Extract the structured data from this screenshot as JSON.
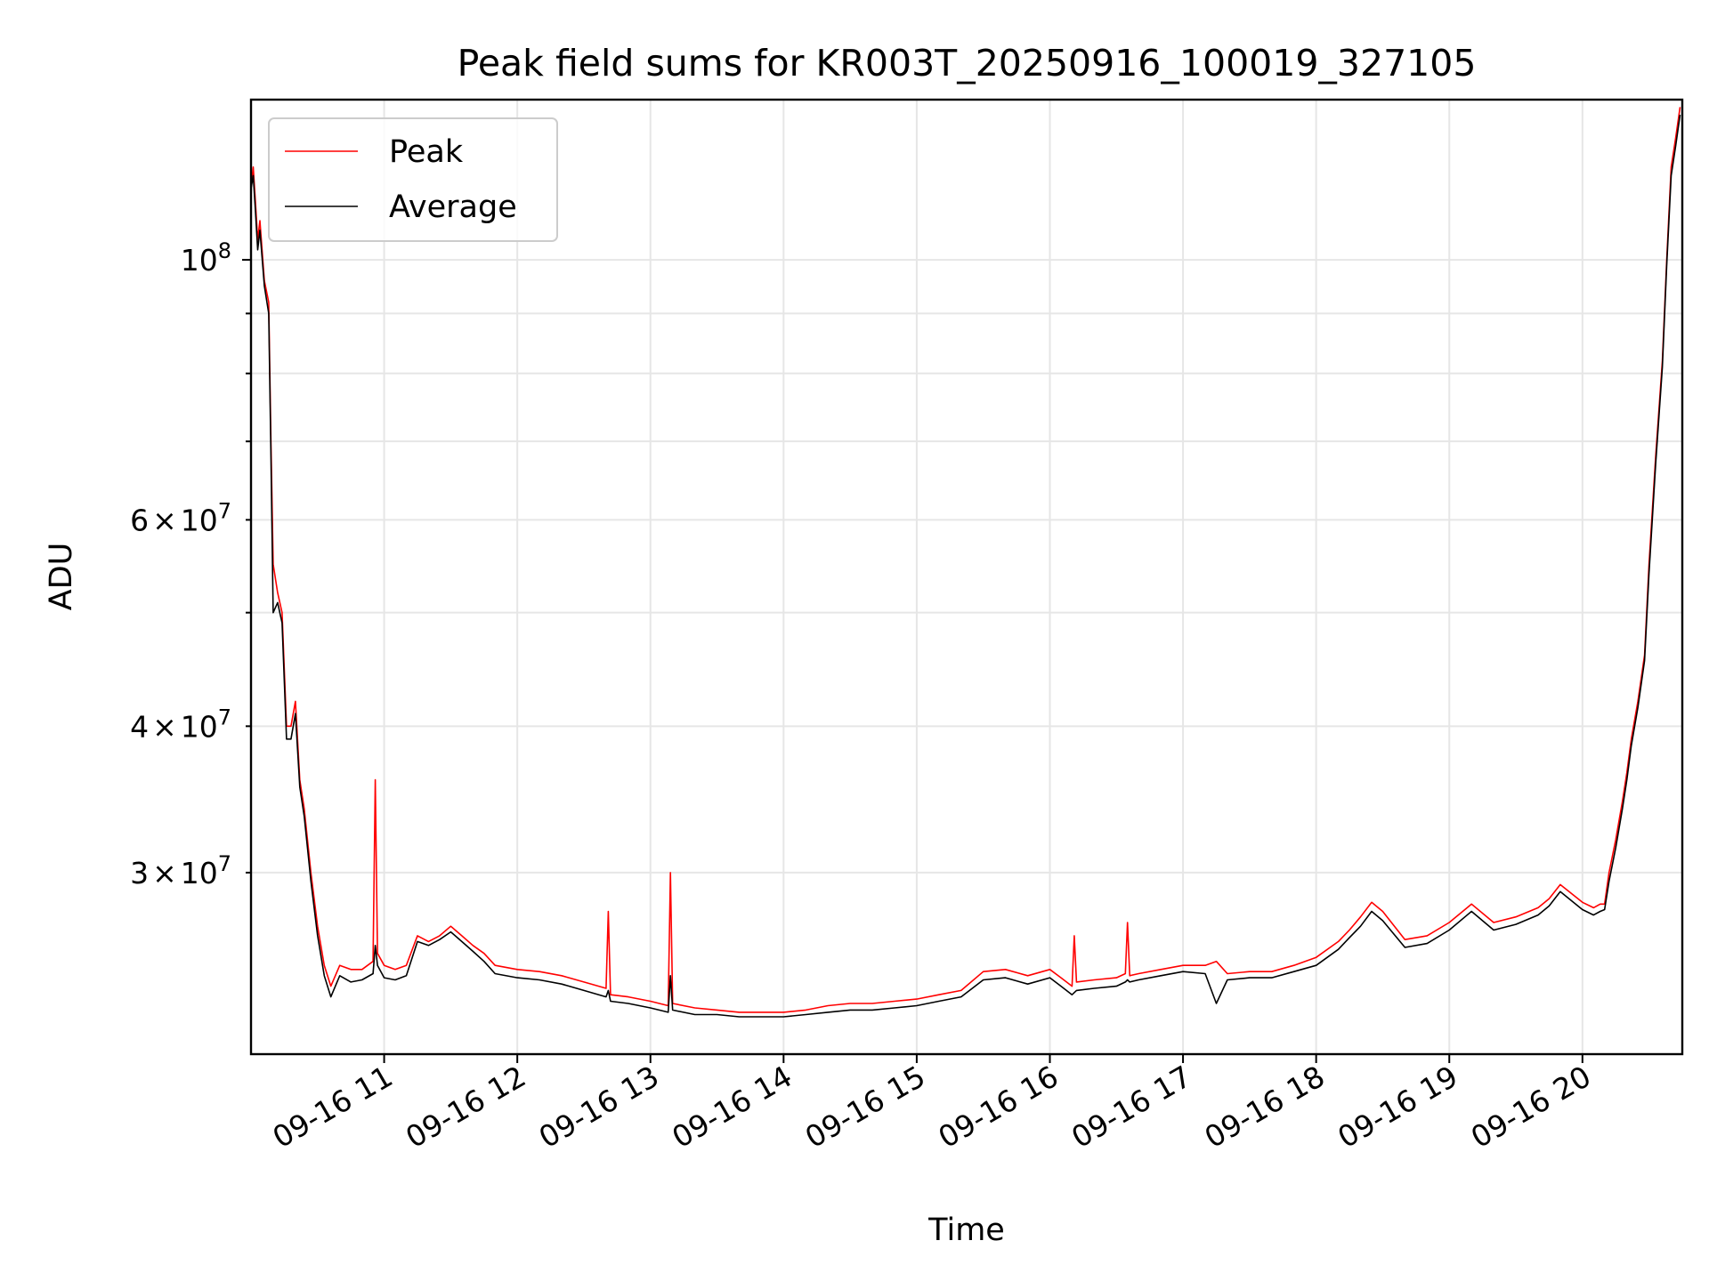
{
  "chart_data": {
    "type": "line",
    "title": "Peak field sums for KR003T_20250916_100019_327105",
    "xlabel": "Time",
    "ylabel": "ADU",
    "y_scale": "log",
    "ylim": [
      21000000,
      137000000
    ],
    "xlim": [
      "2025-09-16 10:00",
      "2025-09-16 20:45"
    ],
    "grid": true,
    "legend_position": "top-left",
    "x_ticks": [
      {
        "x": "2025-09-16 11:00",
        "label": "09-16 11"
      },
      {
        "x": "2025-09-16 12:00",
        "label": "09-16 12"
      },
      {
        "x": "2025-09-16 13:00",
        "label": "09-16 13"
      },
      {
        "x": "2025-09-16 14:00",
        "label": "09-16 14"
      },
      {
        "x": "2025-09-16 15:00",
        "label": "09-16 15"
      },
      {
        "x": "2025-09-16 16:00",
        "label": "09-16 16"
      },
      {
        "x": "2025-09-16 17:00",
        "label": "09-16 17"
      },
      {
        "x": "2025-09-16 18:00",
        "label": "09-16 18"
      },
      {
        "x": "2025-09-16 19:00",
        "label": "09-16 19"
      },
      {
        "x": "2025-09-16 20:00",
        "label": "09-16 20"
      }
    ],
    "y_major_ticks": [
      {
        "value": 100000000,
        "base": "10",
        "exp": "8"
      }
    ],
    "y_minor_ticks": [
      {
        "value": 30000000,
        "mant": "3",
        "times": "×",
        "base": "10",
        "exp": "7"
      },
      {
        "value": 40000000,
        "mant": "4",
        "times": "×",
        "base": "10",
        "exp": "7"
      },
      {
        "value": 60000000,
        "mant": "6",
        "times": "×",
        "base": "10",
        "exp": "7"
      },
      {
        "value": 50000000
      },
      {
        "value": 70000000
      },
      {
        "value": 80000000
      },
      {
        "value": 90000000
      }
    ],
    "series": [
      {
        "name": "Peak",
        "color": "#ff0000",
        "x": [
          "2025-09-16 10:00",
          "2025-09-16 10:01",
          "2025-09-16 10:02",
          "2025-09-16 10:03",
          "2025-09-16 10:04",
          "2025-09-16 10:06",
          "2025-09-16 10:08",
          "2025-09-16 10:09",
          "2025-09-16 10:10",
          "2025-09-16 10:12",
          "2025-09-16 10:14",
          "2025-09-16 10:16",
          "2025-09-16 10:18",
          "2025-09-16 10:20",
          "2025-09-16 10:22",
          "2025-09-16 10:24",
          "2025-09-16 10:27",
          "2025-09-16 10:30",
          "2025-09-16 10:33",
          "2025-09-16 10:36",
          "2025-09-16 10:40",
          "2025-09-16 10:45",
          "2025-09-16 10:50",
          "2025-09-16 10:55",
          "2025-09-16 10:56",
          "2025-09-16 10:57",
          "2025-09-16 11:00",
          "2025-09-16 11:05",
          "2025-09-16 11:10",
          "2025-09-16 11:15",
          "2025-09-16 11:20",
          "2025-09-16 11:25",
          "2025-09-16 11:30",
          "2025-09-16 11:35",
          "2025-09-16 11:40",
          "2025-09-16 11:45",
          "2025-09-16 11:50",
          "2025-09-16 12:00",
          "2025-09-16 12:10",
          "2025-09-16 12:20",
          "2025-09-16 12:30",
          "2025-09-16 12:40",
          "2025-09-16 12:41",
          "2025-09-16 12:42",
          "2025-09-16 12:50",
          "2025-09-16 13:00",
          "2025-09-16 13:08",
          "2025-09-16 13:09",
          "2025-09-16 13:10",
          "2025-09-16 13:20",
          "2025-09-16 13:30",
          "2025-09-16 13:40",
          "2025-09-16 13:50",
          "2025-09-16 14:00",
          "2025-09-16 14:10",
          "2025-09-16 14:20",
          "2025-09-16 14:30",
          "2025-09-16 14:40",
          "2025-09-16 14:50",
          "2025-09-16 15:00",
          "2025-09-16 15:10",
          "2025-09-16 15:20",
          "2025-09-16 15:30",
          "2025-09-16 15:40",
          "2025-09-16 15:50",
          "2025-09-16 16:00",
          "2025-09-16 16:05",
          "2025-09-16 16:10",
          "2025-09-16 16:11",
          "2025-09-16 16:12",
          "2025-09-16 16:20",
          "2025-09-16 16:30",
          "2025-09-16 16:34",
          "2025-09-16 16:35",
          "2025-09-16 16:36",
          "2025-09-16 16:40",
          "2025-09-16 16:50",
          "2025-09-16 17:00",
          "2025-09-16 17:10",
          "2025-09-16 17:15",
          "2025-09-16 17:20",
          "2025-09-16 17:30",
          "2025-09-16 17:40",
          "2025-09-16 17:50",
          "2025-09-16 18:00",
          "2025-09-16 18:10",
          "2025-09-16 18:15",
          "2025-09-16 18:20",
          "2025-09-16 18:25",
          "2025-09-16 18:30",
          "2025-09-16 18:40",
          "2025-09-16 18:50",
          "2025-09-16 19:00",
          "2025-09-16 19:10",
          "2025-09-16 19:20",
          "2025-09-16 19:30",
          "2025-09-16 19:40",
          "2025-09-16 19:45",
          "2025-09-16 19:50",
          "2025-09-16 20:00",
          "2025-09-16 20:05",
          "2025-09-16 20:08",
          "2025-09-16 20:10",
          "2025-09-16 20:12",
          "2025-09-16 20:15",
          "2025-09-16 20:18",
          "2025-09-16 20:20",
          "2025-09-16 20:22",
          "2025-09-16 20:25",
          "2025-09-16 20:28",
          "2025-09-16 20:30",
          "2025-09-16 20:33",
          "2025-09-16 20:36",
          "2025-09-16 20:38",
          "2025-09-16 20:40",
          "2025-09-16 20:42",
          "2025-09-16 20:44"
        ],
        "values": [
          115000000,
          120000000,
          112000000,
          104000000,
          108000000,
          96000000,
          92000000,
          70000000,
          55000000,
          52000000,
          50000000,
          40000000,
          40000000,
          42000000,
          36000000,
          34000000,
          30000000,
          27000000,
          25000000,
          24000000,
          25000000,
          24800000,
          24800000,
          25200000,
          36000000,
          25600000,
          25000000,
          24800000,
          25000000,
          26500000,
          26200000,
          26500000,
          27000000,
          26500000,
          26000000,
          25600000,
          25000000,
          24800000,
          24700000,
          24500000,
          24200000,
          23900000,
          27800000,
          23600000,
          23500000,
          23300000,
          23100000,
          30000000,
          23200000,
          23000000,
          22900000,
          22800000,
          22800000,
          22800000,
          22900000,
          23100000,
          23200000,
          23200000,
          23300000,
          23400000,
          23600000,
          23800000,
          24700000,
          24800000,
          24500000,
          24800000,
          24400000,
          24000000,
          26500000,
          24200000,
          24300000,
          24400000,
          24600000,
          27200000,
          24500000,
          24600000,
          24800000,
          25000000,
          25000000,
          25200000,
          24600000,
          24700000,
          24700000,
          25000000,
          25400000,
          26200000,
          26800000,
          27500000,
          28300000,
          27800000,
          26300000,
          26500000,
          27200000,
          28200000,
          27200000,
          27500000,
          28000000,
          28500000,
          29300000,
          28300000,
          28000000,
          28200000,
          28200000,
          30000000,
          32000000,
          34500000,
          36500000,
          39000000,
          42000000,
          46000000,
          55000000,
          68000000,
          82000000,
          100000000,
          120000000,
          127000000,
          135000000
        ]
      },
      {
        "name": "Average",
        "color": "#000000",
        "x": [
          "2025-09-16 10:00",
          "2025-09-16 10:01",
          "2025-09-16 10:02",
          "2025-09-16 10:03",
          "2025-09-16 10:04",
          "2025-09-16 10:06",
          "2025-09-16 10:08",
          "2025-09-16 10:09",
          "2025-09-16 10:10",
          "2025-09-16 10:12",
          "2025-09-16 10:14",
          "2025-09-16 10:16",
          "2025-09-16 10:18",
          "2025-09-16 10:20",
          "2025-09-16 10:22",
          "2025-09-16 10:24",
          "2025-09-16 10:27",
          "2025-09-16 10:30",
          "2025-09-16 10:33",
          "2025-09-16 10:36",
          "2025-09-16 10:40",
          "2025-09-16 10:45",
          "2025-09-16 10:50",
          "2025-09-16 10:55",
          "2025-09-16 10:56",
          "2025-09-16 10:57",
          "2025-09-16 11:00",
          "2025-09-16 11:05",
          "2025-09-16 11:10",
          "2025-09-16 11:15",
          "2025-09-16 11:20",
          "2025-09-16 11:25",
          "2025-09-16 11:30",
          "2025-09-16 11:35",
          "2025-09-16 11:40",
          "2025-09-16 11:45",
          "2025-09-16 11:50",
          "2025-09-16 12:00",
          "2025-09-16 12:10",
          "2025-09-16 12:20",
          "2025-09-16 12:30",
          "2025-09-16 12:40",
          "2025-09-16 12:41",
          "2025-09-16 12:42",
          "2025-09-16 12:50",
          "2025-09-16 13:00",
          "2025-09-16 13:08",
          "2025-09-16 13:09",
          "2025-09-16 13:10",
          "2025-09-16 13:20",
          "2025-09-16 13:30",
          "2025-09-16 13:40",
          "2025-09-16 13:50",
          "2025-09-16 14:00",
          "2025-09-16 14:10",
          "2025-09-16 14:20",
          "2025-09-16 14:30",
          "2025-09-16 14:40",
          "2025-09-16 14:50",
          "2025-09-16 15:00",
          "2025-09-16 15:10",
          "2025-09-16 15:20",
          "2025-09-16 15:30",
          "2025-09-16 15:40",
          "2025-09-16 15:50",
          "2025-09-16 16:00",
          "2025-09-16 16:05",
          "2025-09-16 16:10",
          "2025-09-16 16:11",
          "2025-09-16 16:12",
          "2025-09-16 16:20",
          "2025-09-16 16:30",
          "2025-09-16 16:34",
          "2025-09-16 16:35",
          "2025-09-16 16:36",
          "2025-09-16 16:40",
          "2025-09-16 16:50",
          "2025-09-16 17:00",
          "2025-09-16 17:10",
          "2025-09-16 17:15",
          "2025-09-16 17:20",
          "2025-09-16 17:30",
          "2025-09-16 17:40",
          "2025-09-16 17:50",
          "2025-09-16 18:00",
          "2025-09-16 18:10",
          "2025-09-16 18:15",
          "2025-09-16 18:20",
          "2025-09-16 18:25",
          "2025-09-16 18:30",
          "2025-09-16 18:40",
          "2025-09-16 18:50",
          "2025-09-16 19:00",
          "2025-09-16 19:10",
          "2025-09-16 19:20",
          "2025-09-16 19:30",
          "2025-09-16 19:40",
          "2025-09-16 19:45",
          "2025-09-16 19:50",
          "2025-09-16 20:00",
          "2025-09-16 20:05",
          "2025-09-16 20:08",
          "2025-09-16 20:10",
          "2025-09-16 20:12",
          "2025-09-16 20:15",
          "2025-09-16 20:18",
          "2025-09-16 20:20",
          "2025-09-16 20:22",
          "2025-09-16 20:25",
          "2025-09-16 20:28",
          "2025-09-16 20:30",
          "2025-09-16 20:33",
          "2025-09-16 20:36",
          "2025-09-16 20:38",
          "2025-09-16 20:40",
          "2025-09-16 20:42",
          "2025-09-16 20:44"
        ],
        "values": [
          115000000,
          118000000,
          110000000,
          102000000,
          106000000,
          95000000,
          90000000,
          68000000,
          50000000,
          51000000,
          49000000,
          39000000,
          39000000,
          41000000,
          35500000,
          33500000,
          29500000,
          26500000,
          24500000,
          23500000,
          24500000,
          24200000,
          24300000,
          24600000,
          26000000,
          25000000,
          24400000,
          24300000,
          24500000,
          26200000,
          26000000,
          26300000,
          26700000,
          26200000,
          25700000,
          25200000,
          24600000,
          24400000,
          24300000,
          24100000,
          23800000,
          23500000,
          23800000,
          23300000,
          23200000,
          23000000,
          22800000,
          24500000,
          22900000,
          22700000,
          22700000,
          22600000,
          22600000,
          22600000,
          22700000,
          22800000,
          22900000,
          22900000,
          23000000,
          23100000,
          23300000,
          23500000,
          24300000,
          24400000,
          24100000,
          24400000,
          24000000,
          23600000,
          23700000,
          23800000,
          23900000,
          24000000,
          24200000,
          24300000,
          24200000,
          24300000,
          24500000,
          24700000,
          24600000,
          23200000,
          24300000,
          24400000,
          24400000,
          24700000,
          25000000,
          25800000,
          26400000,
          27000000,
          27800000,
          27300000,
          25900000,
          26100000,
          26800000,
          27800000,
          26800000,
          27100000,
          27600000,
          28100000,
          28900000,
          27900000,
          27600000,
          27800000,
          27900000,
          29500000,
          31500000,
          34000000,
          36000000,
          38500000,
          41500000,
          45500000,
          54000000,
          67000000,
          81000000,
          99000000,
          118000000,
          125000000,
          133000000
        ]
      }
    ]
  }
}
